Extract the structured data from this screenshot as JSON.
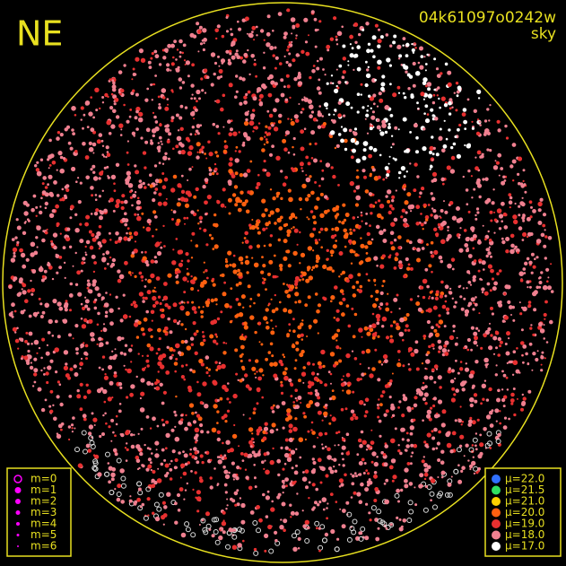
{
  "corner_label": "NE",
  "frame_id": "04k61097o0242w",
  "frame_kind": "sky",
  "magnitude_legend": {
    "items": [
      "m=0",
      "m=1",
      "m=2",
      "m=3",
      "m=4",
      "m=5",
      "m=6"
    ],
    "color": "#ff00ff"
  },
  "brightness_legend": {
    "items": [
      {
        "label": "μ=22.0",
        "color": "#3070ff"
      },
      {
        "label": "μ=21.5",
        "color": "#30e060"
      },
      {
        "label": "μ=21.0",
        "color": "#ffd000"
      },
      {
        "label": "μ=20.0",
        "color": "#ff6010"
      },
      {
        "label": "μ=19.0",
        "color": "#e83030"
      },
      {
        "label": "μ=18.0",
        "color": "#f08090"
      },
      {
        "label": "μ=17.0",
        "color": "#ffffff"
      }
    ]
  }
}
